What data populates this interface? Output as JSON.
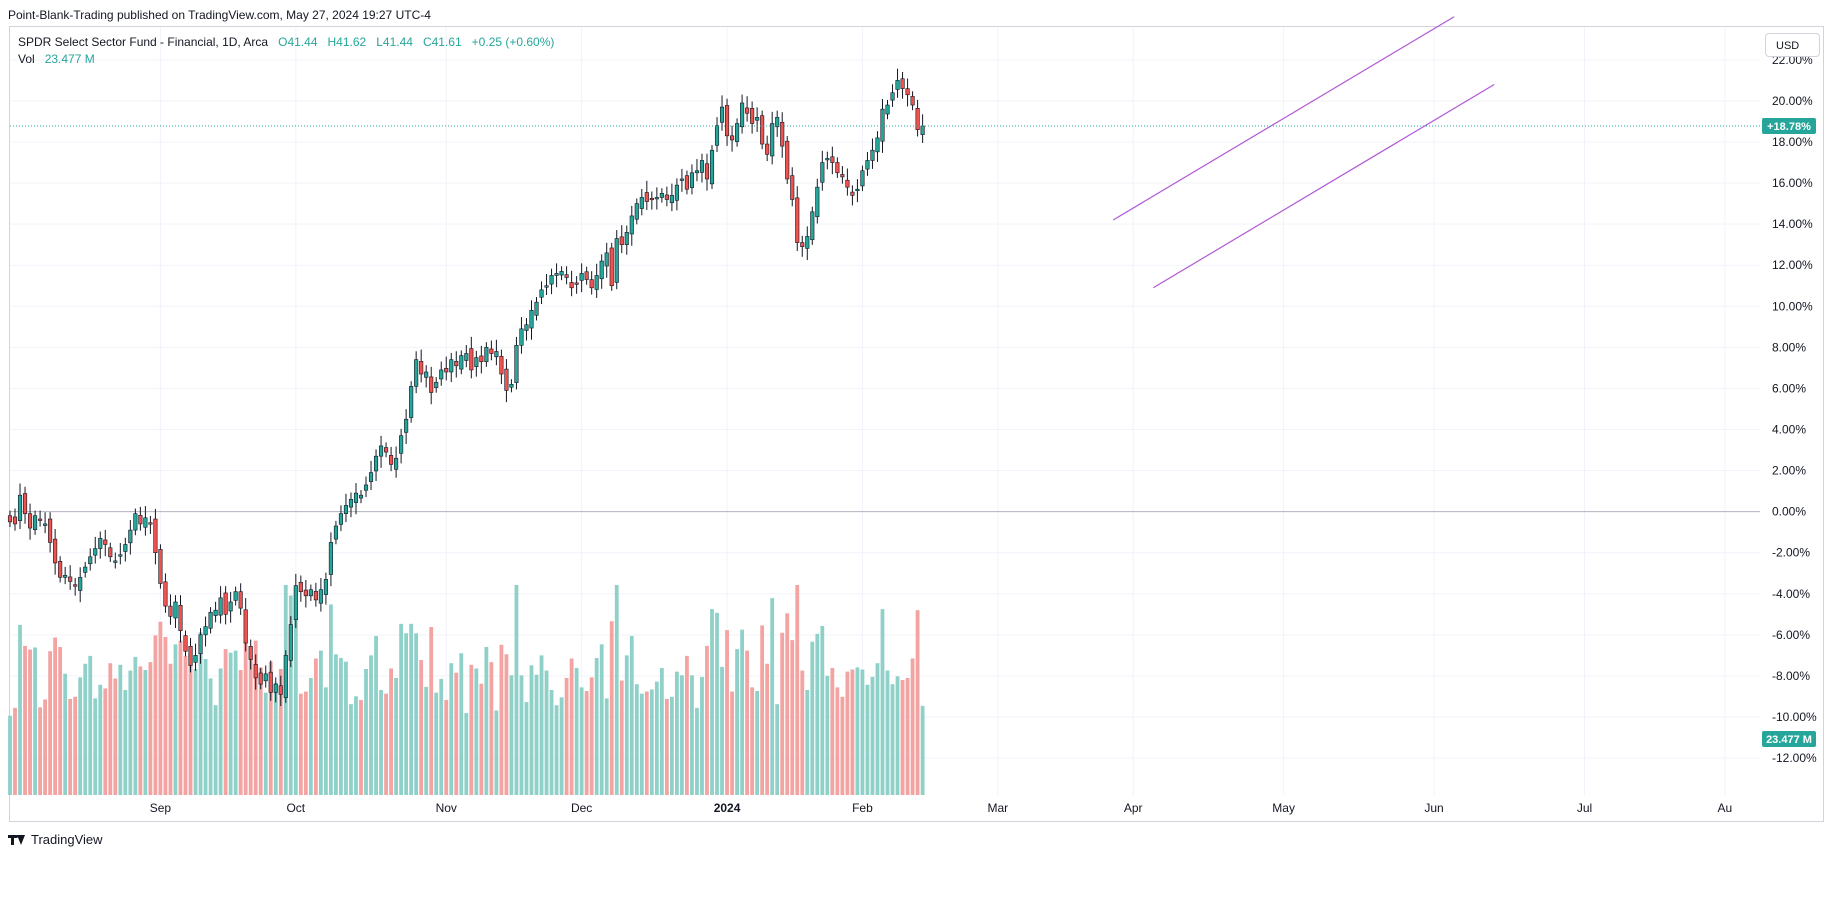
{
  "header": {
    "publish_info": "Point-Blank-Trading published on TradingView.com, May 27, 2024 19:27 UTC-4"
  },
  "legend": {
    "symbol_line": "SPDR Select Sector Fund - Financial, 1D, Arca",
    "open": "O41.44",
    "high": "H41.62",
    "low": "L41.44",
    "close": "C41.61",
    "change": "+0.25 (+0.60%)",
    "vol_label": "Vol",
    "vol_value": "23.477 M"
  },
  "currency_button": "USD",
  "footer": {
    "brand": "TradingView"
  },
  "colors": {
    "up": "#26a69a",
    "down": "#ef5350",
    "vol_up": "#8fd1c9",
    "vol_down": "#f3a3a2",
    "channel": "#b157d6",
    "grid": "#f0f3fa"
  },
  "chart_data": {
    "type": "candlestick",
    "title": "SPDR Select Sector Fund - Financial, 1D, Arca",
    "y_axis": {
      "unit": "percent",
      "range": [
        -13.8,
        23.6
      ],
      "tick_labels": [
        "22.00%",
        "20.00%",
        "18.00%",
        "16.00%",
        "14.00%",
        "12.00%",
        "10.00%",
        "8.00%",
        "6.00%",
        "4.00%",
        "2.00%",
        "0.00%",
        "-2.00%",
        "-4.00%",
        "-6.00%",
        "-8.00%",
        "-10.00%",
        "-12.00%"
      ],
      "tick_values": [
        22,
        20,
        18,
        16,
        14,
        12,
        10,
        8,
        6,
        4,
        2,
        0,
        -2,
        -4,
        -6,
        -8,
        -10,
        -12
      ]
    },
    "x_axis": {
      "tick_labels": [
        "Sep",
        "Oct",
        "Nov",
        "Dec",
        "2024",
        "Feb",
        "Mar",
        "Apr",
        "May",
        "Jun",
        "Jul",
        "Au"
      ],
      "tick_index": [
        30,
        57,
        87,
        114,
        143,
        170,
        197,
        224,
        254,
        284,
        314,
        342
      ]
    },
    "x_index_range": [
      0,
      349
    ],
    "current_price_tag": "+18.78%",
    "current_value": 18.78,
    "volume_tag": "23.477 M",
    "volume_max_millions": 80,
    "channel_lines": [
      {
        "from": [
          220,
          14.2
        ],
        "to": [
          288,
          24.1
        ]
      },
      {
        "from": [
          228,
          10.9
        ],
        "to": [
          296,
          20.8
        ]
      }
    ],
    "closes": [
      -0.5,
      -0.6,
      0.8,
      -0.1,
      -0.8,
      -0.2,
      -0.4,
      -0.6,
      -1.5,
      -2.5,
      -3.2,
      -3.1,
      -3.4,
      -3.6,
      -3.2,
      -2.7,
      -2.2,
      -1.8,
      -1.3,
      -1.6,
      -2.2,
      -2.4,
      -2.1,
      -1.6,
      -0.9,
      -0.1,
      -0.6,
      -0.3,
      -0.6,
      -2.0,
      -3.5,
      -4.6,
      -5.1,
      -4.4,
      -5.8,
      -6.8,
      -7.5,
      -7.0,
      -6.0,
      -5.6,
      -4.9,
      -4.8,
      -4.2,
      -5.0,
      -4.4,
      -3.9,
      -4.7,
      -6.4,
      -7.2,
      -8.1,
      -8.4,
      -7.9,
      -8.8,
      -8.4,
      -8.9,
      -7.0,
      -5.5,
      -3.6,
      -3.9,
      -4.1,
      -3.8,
      -4.3,
      -3.8,
      -3.3,
      -1.5,
      -0.7,
      -0.1,
      0.3,
      0.6,
      0.9,
      0.8,
      1.3,
      1.9,
      2.7,
      3.2,
      2.9,
      2.3,
      2.6,
      3.7,
      4.5,
      6.1,
      7.4,
      6.7,
      6.8,
      5.8,
      6.3,
      6.9,
      6.8,
      7.4,
      7.1,
      7.6,
      7.7,
      6.9,
      7.5,
      7.3,
      8.0,
      7.7,
      7.8,
      6.7,
      5.9,
      6.2,
      8.1,
      8.9,
      9.1,
      9.8,
      10.2,
      10.8,
      11.0,
      11.5,
      11.6,
      11.7,
      11.4,
      10.9,
      11.1,
      11.6,
      11.3,
      10.9,
      11.5,
      12.2,
      12.6,
      11.0,
      13.3,
      13.0,
      13.6,
      14.4,
      15.0,
      15.3,
      15.1,
      15.2,
      15.3,
      15.5,
      15.2,
      15.4,
      15.9,
      16.2,
      15.7,
      16.5,
      16.6,
      17.1,
      16.2,
      17.6,
      18.8,
      19.7,
      18.3,
      18.1,
      18.9,
      19.9,
      19.4,
      18.9,
      19.2,
      17.9,
      17.4,
      18.9,
      19.2,
      17.8,
      16.2,
      15.2,
      13.1,
      12.9,
      13.4,
      14.6,
      15.8,
      17.0,
      17.2,
      17.0,
      16.5,
      16.3,
      15.8,
      15.4,
      15.7,
      16.6,
      17.1,
      17.6,
      18.2,
      19.6,
      19.8,
      20.4,
      21.0,
      20.6,
      20.3,
      19.8,
      18.6,
      18.78
    ]
  }
}
